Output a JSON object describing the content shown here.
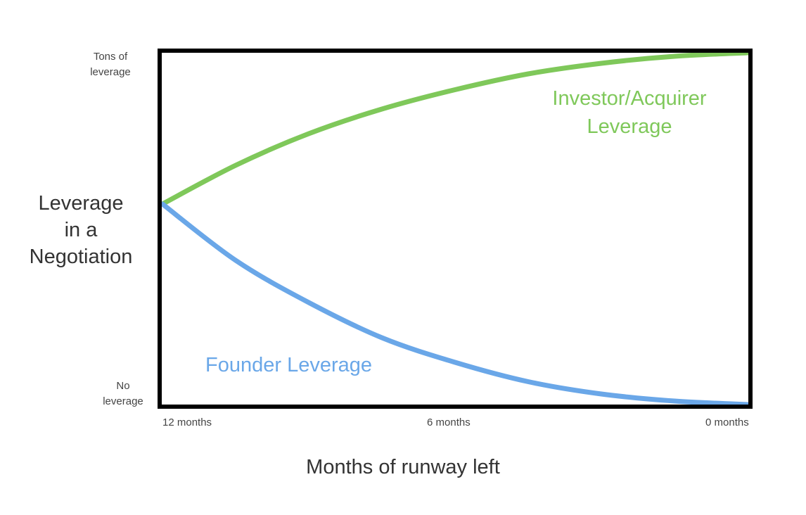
{
  "chart_data": {
    "type": "line",
    "x_ticks": [
      "12 months",
      "6 months",
      "0 months"
    ],
    "x": [
      12,
      10.5,
      9,
      7.5,
      6,
      4.5,
      3,
      1.5,
      0
    ],
    "xlim": [
      12,
      0
    ],
    "ylim": [
      0,
      1
    ],
    "y_ticks": [
      {
        "value": 1,
        "lines": [
          "Tons of",
          "leverage"
        ]
      },
      {
        "value": 0,
        "lines": [
          "No",
          "leverage"
        ]
      }
    ],
    "xlabel": "Months of runway left",
    "ylabel_lines": [
      "Leverage",
      "in a",
      "Negotiation"
    ],
    "grid": false,
    "legend": "none",
    "series": [
      {
        "name_lines": [
          "Investor/Acquirer",
          "Leverage"
        ],
        "color": "#7fc85a",
        "values": [
          0.57,
          0.68,
          0.77,
          0.84,
          0.895,
          0.94,
          0.97,
          0.99,
          1.0
        ]
      },
      {
        "name_lines": [
          "Founder Leverage"
        ],
        "color": "#6aa7e8",
        "values": [
          0.57,
          0.41,
          0.29,
          0.19,
          0.12,
          0.065,
          0.03,
          0.01,
          0.0
        ]
      }
    ]
  }
}
